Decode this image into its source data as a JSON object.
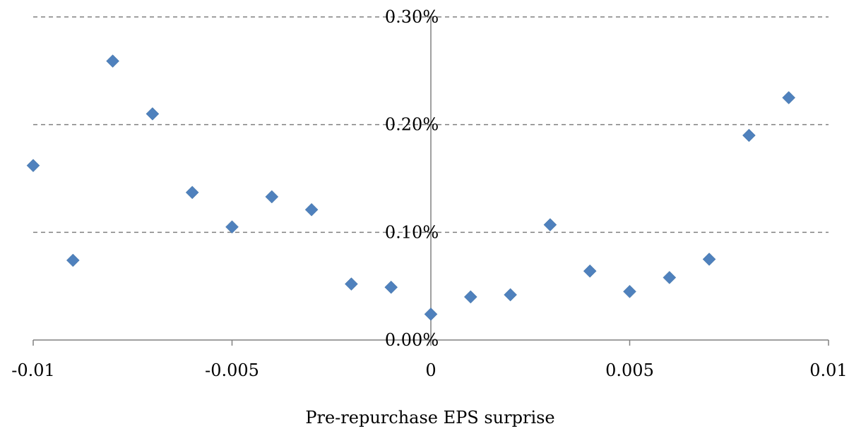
{
  "chart_data": {
    "type": "scatter",
    "title": "",
    "xlabel": "Pre-repurchase EPS surprise",
    "ylabel": "",
    "xlim": [
      -0.01,
      0.01
    ],
    "ylim": [
      0,
      0.3
    ],
    "x_ticks": [
      "-0.01",
      "-0.005",
      "0",
      "0.005",
      "0.01"
    ],
    "x_tick_values": [
      -0.01,
      -0.005,
      0,
      0.005,
      0.01
    ],
    "y_ticks": [
      "0.00%",
      "0.10%",
      "0.20%",
      "0.30%"
    ],
    "y_tick_values": [
      0,
      0.1,
      0.2,
      0.3
    ],
    "y_unit": "percent",
    "grid": "horizontal dashed",
    "marker": "diamond",
    "color": "#4f81bd",
    "series": [
      {
        "x": [
          -0.01,
          -0.009,
          -0.008,
          -0.007,
          -0.006,
          -0.005,
          -0.004,
          -0.003,
          -0.002,
          -0.001,
          0.0,
          0.001,
          0.002,
          0.003,
          0.004,
          0.005,
          0.006,
          0.007,
          0.008,
          0.009
        ],
        "y": [
          0.162,
          0.074,
          0.259,
          0.21,
          0.137,
          0.105,
          0.133,
          0.121,
          0.052,
          0.049,
          0.024,
          0.04,
          0.042,
          0.107,
          0.064,
          0.045,
          0.058,
          0.075,
          0.19,
          0.225
        ]
      }
    ]
  }
}
